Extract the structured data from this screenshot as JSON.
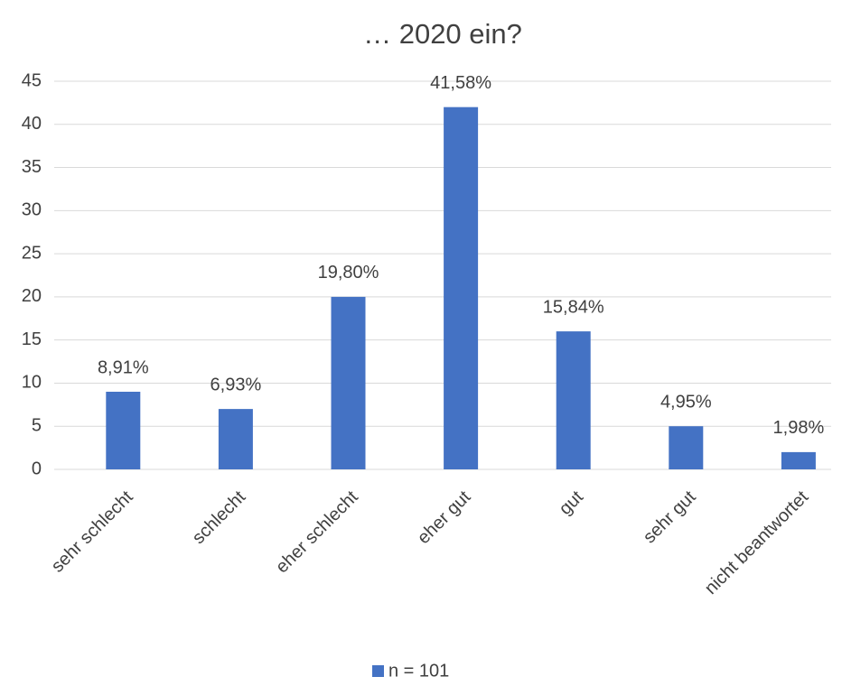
{
  "chart_data": {
    "type": "bar",
    "title": "… 2020 ein?",
    "categories": [
      "sehr schlecht",
      "schlecht",
      "eher schlecht",
      "eher gut",
      "gut",
      "sehr gut",
      "nicht beantwortet"
    ],
    "series": [
      {
        "name": "n = 101",
        "color": "#4472c4",
        "values": [
          9,
          7,
          20,
          42,
          16,
          5,
          2
        ],
        "value_labels": [
          "8,91%",
          "6,93%",
          "19,80%",
          "41,58%",
          "15,84%",
          "4,95%",
          "1,98%"
        ]
      }
    ],
    "ylim": [
      0,
      45
    ],
    "yticks": [
      0,
      5,
      10,
      15,
      20,
      25,
      30,
      35,
      40,
      45
    ],
    "grid": true,
    "legend": "bottom"
  }
}
